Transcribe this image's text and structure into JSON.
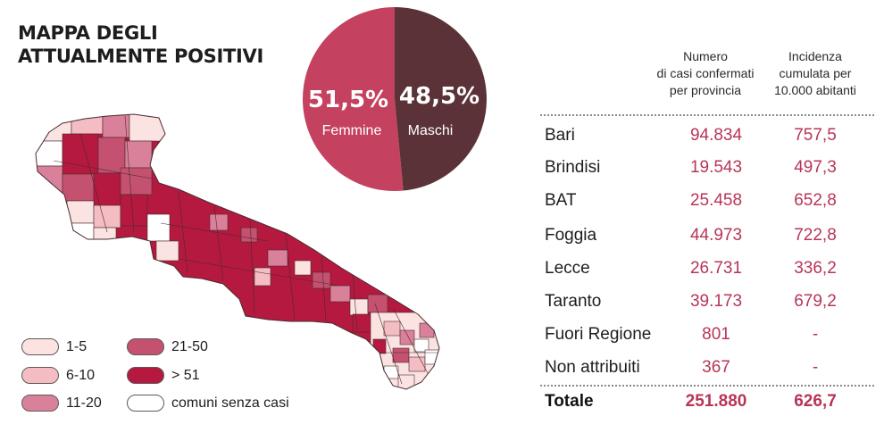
{
  "title_lines": [
    "MAPPA DEGLI",
    "ATTUALMENTE POSITIVI"
  ],
  "legend": [
    {
      "label": "1-5",
      "color": "#fbe3e1"
    },
    {
      "label": "6-10",
      "color": "#f4bcc3"
    },
    {
      "label": "11-20",
      "color": "#d9819a"
    },
    {
      "label": "21-50",
      "color": "#c4516f"
    },
    {
      "label": "> 51",
      "color": "#b5193f"
    },
    {
      "label": "comuni senza casi",
      "color": "#ffffff"
    }
  ],
  "colors": {
    "femmine": "#c4425f",
    "maschi": "#5a3237",
    "accent": "#b83556"
  },
  "table": {
    "header_cases": [
      "Numero",
      "di casi confermati",
      "per provincia"
    ],
    "header_incidence": [
      "Incidenza",
      "cumulata per",
      "10.000 abitanti"
    ],
    "rows": [
      {
        "name": "Bari",
        "cases": "94.834",
        "incidence": "757,5"
      },
      {
        "name": "Brindisi",
        "cases": "19.543",
        "incidence": "497,3"
      },
      {
        "name": "BAT",
        "cases": "25.458",
        "incidence": "652,8"
      },
      {
        "name": "Foggia",
        "cases": "44.973",
        "incidence": "722,8"
      },
      {
        "name": "Lecce",
        "cases": "26.731",
        "incidence": "336,2"
      },
      {
        "name": "Taranto",
        "cases": "39.173",
        "incidence": "679,2"
      },
      {
        "name": "Fuori Regione",
        "cases": "801",
        "incidence": "-"
      },
      {
        "name": "Non attribuiti",
        "cases": "367",
        "incidence": "-"
      }
    ],
    "total": {
      "name": "Totale",
      "cases": "251.880",
      "incidence": "626,7"
    }
  },
  "chart_data": [
    {
      "type": "pie",
      "slices": [
        {
          "label": "Femmine",
          "value": 51.5,
          "display": "51,5%"
        },
        {
          "label": "Maschi",
          "value": 48.5,
          "display": "48,5%"
        }
      ]
    },
    {
      "type": "table",
      "columns": [
        "Numero di casi confermati per provincia",
        "Incidenza cumulata per 10.000 abitanti"
      ],
      "categories": [
        "Bari",
        "Brindisi",
        "BAT",
        "Foggia",
        "Lecce",
        "Taranto",
        "Fuori Regione",
        "Non attribuiti",
        "Totale"
      ],
      "cases": [
        94834,
        19543,
        25458,
        44973,
        26731,
        39173,
        801,
        367,
        251880
      ],
      "incidence": [
        757.5,
        497.3,
        652.8,
        722.8,
        336.2,
        679.2,
        null,
        null,
        626.7
      ]
    }
  ]
}
